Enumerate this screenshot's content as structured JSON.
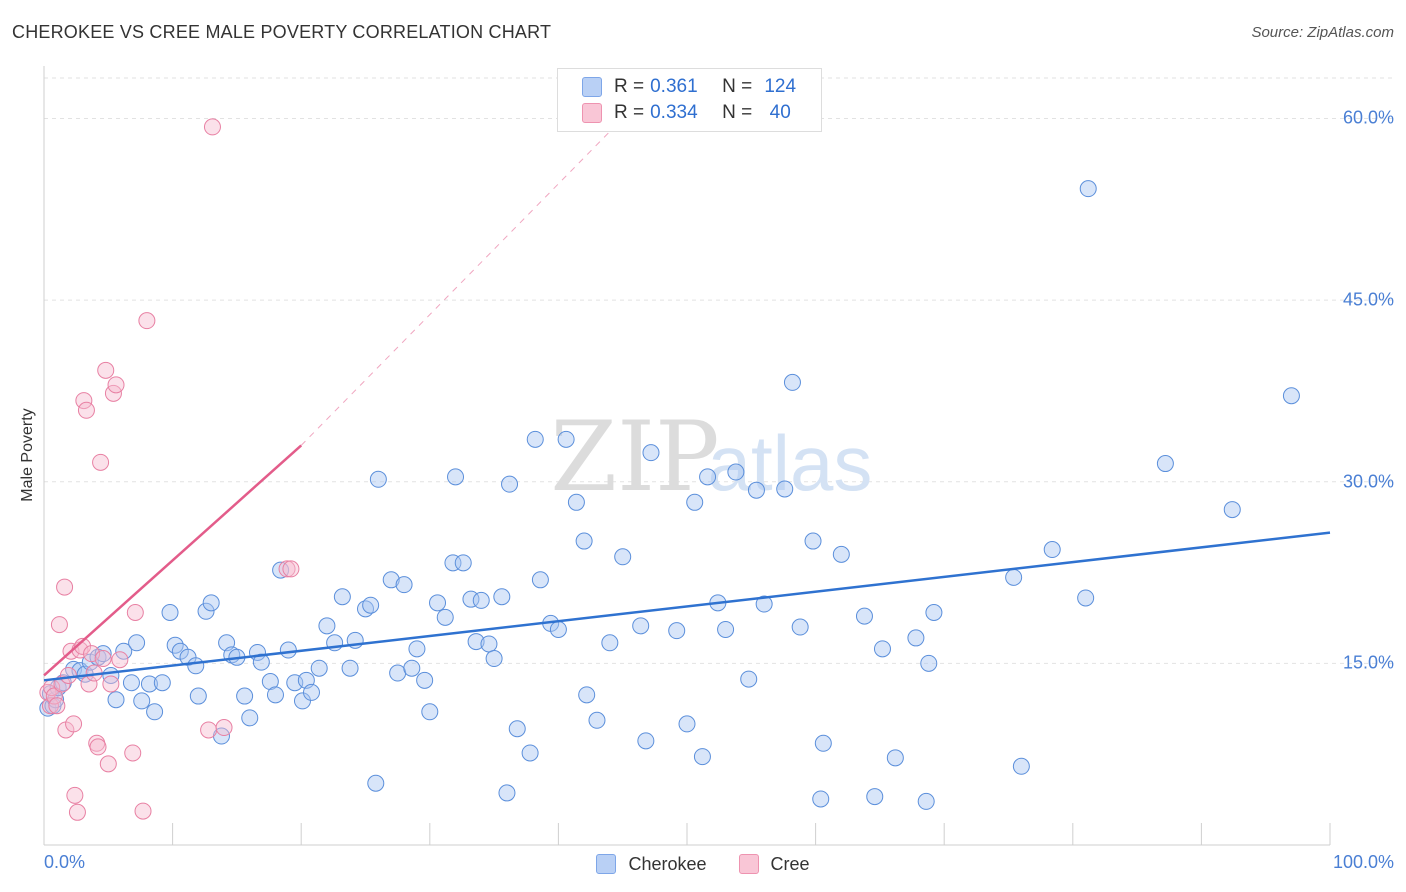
{
  "chart_data": {
    "type": "scatter",
    "title": "CHEROKEE VS CREE MALE POVERTY CORRELATION CHART",
    "source": "Source: ZipAtlas.com",
    "ylabel": "Male Poverty",
    "xlim": [
      0,
      100
    ],
    "ylim": [
      0,
      64
    ],
    "x_ticks": [
      "0.0%",
      "100.0%"
    ],
    "y_ticks": [
      {
        "value": 15,
        "label": "15.0%"
      },
      {
        "value": 30,
        "label": "30.0%"
      },
      {
        "value": 45,
        "label": "45.0%"
      },
      {
        "value": 60,
        "label": "60.0%"
      }
    ],
    "grid": true,
    "watermark": {
      "zip": "ZIP",
      "atlas": "atlas"
    },
    "legend_stats": [
      {
        "r_label": "R =",
        "r": "0.361",
        "n_label": "N =",
        "n": "124",
        "color": "#b9d0f5",
        "border": "#7ea6e8"
      },
      {
        "r_label": "R =",
        "r": "0.334",
        "n_label": "N =",
        "n": "40",
        "color": "#f9c6d6",
        "border": "#ee93b0"
      }
    ],
    "series": [
      {
        "name": "Cherokee",
        "color": "#a9c6f2",
        "stroke": "#5b8fdb",
        "trend": {
          "x": [
            0,
            100
          ],
          "y": [
            13.6,
            25.8
          ],
          "color": "#2f72d0"
        },
        "points": [
          [
            0.3,
            11.3
          ],
          [
            0.5,
            12.5
          ],
          [
            0.7,
            11.5
          ],
          [
            0.9,
            12.0
          ],
          [
            1.1,
            13.0
          ],
          [
            1.5,
            13.4
          ],
          [
            2.3,
            14.5
          ],
          [
            2.8,
            14.4
          ],
          [
            3.2,
            14.1
          ],
          [
            3.6,
            15.1
          ],
          [
            4.2,
            15.5
          ],
          [
            4.6,
            15.8
          ],
          [
            5.2,
            14.0
          ],
          [
            5.6,
            12.0
          ],
          [
            6.2,
            16.0
          ],
          [
            6.8,
            13.4
          ],
          [
            7.2,
            16.7
          ],
          [
            7.6,
            11.9
          ],
          [
            8.2,
            13.3
          ],
          [
            8.6,
            11.0
          ],
          [
            9.2,
            13.4
          ],
          [
            9.8,
            19.2
          ],
          [
            10.2,
            16.5
          ],
          [
            10.6,
            16.0
          ],
          [
            11.2,
            15.5
          ],
          [
            11.8,
            14.8
          ],
          [
            12.0,
            12.3
          ],
          [
            12.6,
            19.3
          ],
          [
            13.0,
            20.0
          ],
          [
            13.8,
            9.0
          ],
          [
            14.2,
            16.7
          ],
          [
            14.6,
            15.7
          ],
          [
            15.0,
            15.5
          ],
          [
            15.6,
            12.3
          ],
          [
            16.0,
            10.5
          ],
          [
            16.6,
            15.9
          ],
          [
            16.9,
            15.1
          ],
          [
            17.6,
            13.5
          ],
          [
            18.0,
            12.4
          ],
          [
            18.4,
            22.7
          ],
          [
            19.0,
            16.1
          ],
          [
            19.5,
            13.4
          ],
          [
            20.1,
            11.9
          ],
          [
            20.4,
            13.6
          ],
          [
            20.8,
            12.6
          ],
          [
            21.4,
            14.6
          ],
          [
            22.0,
            18.1
          ],
          [
            22.6,
            16.7
          ],
          [
            23.2,
            20.5
          ],
          [
            23.8,
            14.6
          ],
          [
            24.2,
            16.9
          ],
          [
            25.0,
            19.5
          ],
          [
            25.4,
            19.8
          ],
          [
            25.8,
            5.1
          ],
          [
            26.0,
            30.2
          ],
          [
            27.0,
            21.9
          ],
          [
            27.5,
            14.2
          ],
          [
            28.0,
            21.5
          ],
          [
            28.6,
            14.6
          ],
          [
            29.0,
            16.2
          ],
          [
            29.6,
            13.6
          ],
          [
            30.0,
            11.0
          ],
          [
            30.6,
            20.0
          ],
          [
            31.2,
            18.8
          ],
          [
            31.8,
            23.3
          ],
          [
            32.0,
            30.4
          ],
          [
            32.6,
            23.3
          ],
          [
            33.2,
            20.3
          ],
          [
            33.6,
            16.8
          ],
          [
            34.0,
            20.2
          ],
          [
            34.6,
            16.6
          ],
          [
            35.0,
            15.4
          ],
          [
            35.6,
            20.5
          ],
          [
            36.0,
            4.3
          ],
          [
            36.2,
            29.8
          ],
          [
            36.8,
            9.6
          ],
          [
            37.8,
            7.6
          ],
          [
            38.2,
            33.5
          ],
          [
            38.6,
            21.9
          ],
          [
            39.4,
            18.3
          ],
          [
            40.0,
            17.8
          ],
          [
            40.6,
            33.5
          ],
          [
            41.4,
            28.3
          ],
          [
            42.0,
            25.1
          ],
          [
            42.2,
            12.4
          ],
          [
            43.0,
            10.3
          ],
          [
            44.0,
            16.7
          ],
          [
            45.0,
            23.8
          ],
          [
            46.4,
            18.1
          ],
          [
            46.8,
            8.6
          ],
          [
            47.2,
            32.4
          ],
          [
            49.2,
            17.7
          ],
          [
            50.0,
            10.0
          ],
          [
            50.6,
            28.3
          ],
          [
            51.2,
            7.3
          ],
          [
            51.6,
            30.4
          ],
          [
            52.4,
            20.0
          ],
          [
            53.0,
            17.8
          ],
          [
            53.8,
            30.8
          ],
          [
            54.8,
            13.7
          ],
          [
            55.4,
            29.3
          ],
          [
            56.0,
            19.9
          ],
          [
            57.6,
            29.4
          ],
          [
            58.2,
            38.2
          ],
          [
            58.8,
            18.0
          ],
          [
            59.8,
            25.1
          ],
          [
            60.4,
            3.8
          ],
          [
            60.6,
            8.4
          ],
          [
            62.0,
            24.0
          ],
          [
            63.8,
            18.9
          ],
          [
            64.6,
            4.0
          ],
          [
            65.2,
            16.2
          ],
          [
            66.2,
            7.2
          ],
          [
            67.8,
            17.1
          ],
          [
            68.6,
            3.6
          ],
          [
            68.8,
            15.0
          ],
          [
            69.2,
            19.2
          ],
          [
            75.4,
            22.1
          ],
          [
            76.0,
            6.5
          ],
          [
            78.4,
            24.4
          ],
          [
            81.0,
            20.4
          ],
          [
            81.2,
            54.2
          ],
          [
            87.2,
            31.5
          ],
          [
            92.4,
            27.7
          ],
          [
            97.0,
            37.1
          ]
        ]
      },
      {
        "name": "Cree",
        "color": "#f7bcd0",
        "stroke": "#e880a3",
        "trend": {
          "x": [
            0,
            20
          ],
          "y": [
            14.0,
            33.0
          ],
          "color": "#e35c8a",
          "extend_to": [
            45,
            60
          ],
          "dashed_color": "#f0a6c0"
        },
        "points": [
          [
            0.3,
            12.6
          ],
          [
            0.5,
            11.5
          ],
          [
            0.6,
            13.0
          ],
          [
            0.8,
            12.3
          ],
          [
            1.0,
            11.5
          ],
          [
            1.2,
            18.2
          ],
          [
            1.4,
            13.3
          ],
          [
            1.6,
            21.3
          ],
          [
            1.7,
            9.5
          ],
          [
            1.9,
            14.0
          ],
          [
            2.1,
            16.0
          ],
          [
            2.3,
            10.0
          ],
          [
            2.4,
            4.1
          ],
          [
            2.6,
            2.7
          ],
          [
            2.8,
            16.1
          ],
          [
            3.0,
            16.4
          ],
          [
            3.1,
            36.7
          ],
          [
            3.3,
            35.9
          ],
          [
            3.5,
            13.3
          ],
          [
            3.7,
            15.8
          ],
          [
            3.9,
            14.2
          ],
          [
            4.1,
            8.4
          ],
          [
            4.2,
            8.1
          ],
          [
            4.4,
            31.6
          ],
          [
            4.6,
            15.4
          ],
          [
            4.8,
            39.2
          ],
          [
            5.0,
            6.7
          ],
          [
            5.2,
            13.3
          ],
          [
            5.4,
            37.3
          ],
          [
            5.6,
            38.0
          ],
          [
            5.9,
            15.3
          ],
          [
            6.9,
            7.6
          ],
          [
            7.1,
            19.2
          ],
          [
            7.7,
            2.8
          ],
          [
            8.0,
            43.3
          ],
          [
            12.8,
            9.5
          ],
          [
            13.1,
            59.3
          ],
          [
            14.0,
            9.7
          ],
          [
            18.9,
            22.8
          ],
          [
            19.2,
            22.8
          ]
        ]
      }
    ]
  }
}
